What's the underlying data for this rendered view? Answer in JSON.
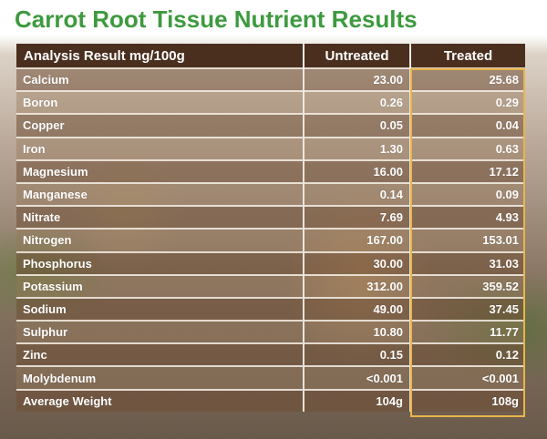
{
  "title": "Carrot Root Tissue Nutrient Results",
  "table": {
    "headers": [
      "Analysis Result mg/100g",
      "Untreated",
      "Treated"
    ],
    "rows": [
      {
        "name": "Calcium",
        "untreated": "23.00",
        "treated": "25.68"
      },
      {
        "name": "Boron",
        "untreated": "0.26",
        "treated": "0.29"
      },
      {
        "name": "Copper",
        "untreated": "0.05",
        "treated": "0.04"
      },
      {
        "name": "Iron",
        "untreated": "1.30",
        "treated": "0.63"
      },
      {
        "name": "Magnesium",
        "untreated": "16.00",
        "treated": "17.12"
      },
      {
        "name": "Manganese",
        "untreated": "0.14",
        "treated": "0.09"
      },
      {
        "name": "Nitrate",
        "untreated": "7.69",
        "treated": "4.93"
      },
      {
        "name": "Nitrogen",
        "untreated": "167.00",
        "treated": "153.01"
      },
      {
        "name": "Phosphorus",
        "untreated": "30.00",
        "treated": "31.03"
      },
      {
        "name": "Potassium",
        "untreated": "312.00",
        "treated": "359.52"
      },
      {
        "name": "Sodium",
        "untreated": "49.00",
        "treated": "37.45"
      },
      {
        "name": "Sulphur",
        "untreated": "10.80",
        "treated": "11.77"
      },
      {
        "name": "Zinc",
        "untreated": "0.15",
        "treated": "0.12"
      },
      {
        "name": "Molybdenum",
        "untreated": "<0.001",
        "treated": "<0.001"
      },
      {
        "name": "Average Weight",
        "untreated": "104g",
        "treated": "108g"
      }
    ]
  },
  "colors": {
    "title": "#3e9a3f",
    "header_bg": "#4a2f1f",
    "treated_highlight": "#e8b54a"
  }
}
